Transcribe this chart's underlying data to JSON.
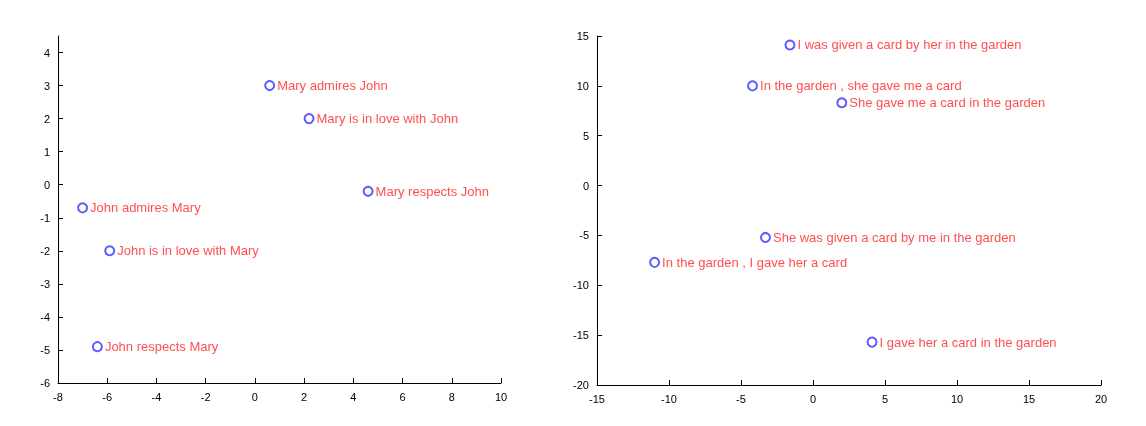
{
  "chart_data": [
    {
      "type": "scatter",
      "marker": "circle",
      "grid": false,
      "xlim": [
        -8,
        10
      ],
      "ylim": [
        -6,
        4.5
      ],
      "xticks": [
        -8,
        -6,
        -4,
        -2,
        0,
        2,
        4,
        6,
        8,
        10
      ],
      "yticks": [
        -6,
        -5,
        -4,
        -3,
        -2,
        -1,
        0,
        1,
        2,
        3,
        4
      ],
      "series": [
        {
          "color": "#3333ff",
          "x": [
            0.6,
            2.2,
            4.6,
            -7.0,
            -5.9,
            -6.4
          ],
          "values": [
            3.0,
            2.0,
            -0.2,
            -0.7,
            -2.0,
            -4.9
          ],
          "value_labels": [
            "Mary admires John",
            "Mary is in love with John",
            "Mary respects John",
            "John admires Mary",
            "John is in love with Mary",
            "John respects Mary"
          ]
        }
      ]
    },
    {
      "type": "scatter",
      "marker": "circle",
      "grid": false,
      "xlim": [
        -15,
        20
      ],
      "ylim": [
        -20,
        15
      ],
      "xticks": [
        -15,
        -10,
        -5,
        0,
        5,
        10,
        15,
        20
      ],
      "yticks": [
        -20,
        -15,
        -10,
        -5,
        0,
        5,
        10,
        15
      ],
      "series": [
        {
          "color": "#3333ff",
          "x": [
            -1.6,
            -4.2,
            2.0,
            -3.3,
            -11.0,
            4.1
          ],
          "values": [
            14.1,
            10.0,
            8.3,
            -5.2,
            -7.7,
            -15.7
          ],
          "value_labels": [
            "I was given a card by her in the garden",
            "In the garden , she gave me a card",
            "She gave me a card in the garden",
            "She was given a card by me in the garden",
            "In the garden , I gave her a card",
            "I gave her a card in the garden"
          ]
        }
      ]
    }
  ]
}
